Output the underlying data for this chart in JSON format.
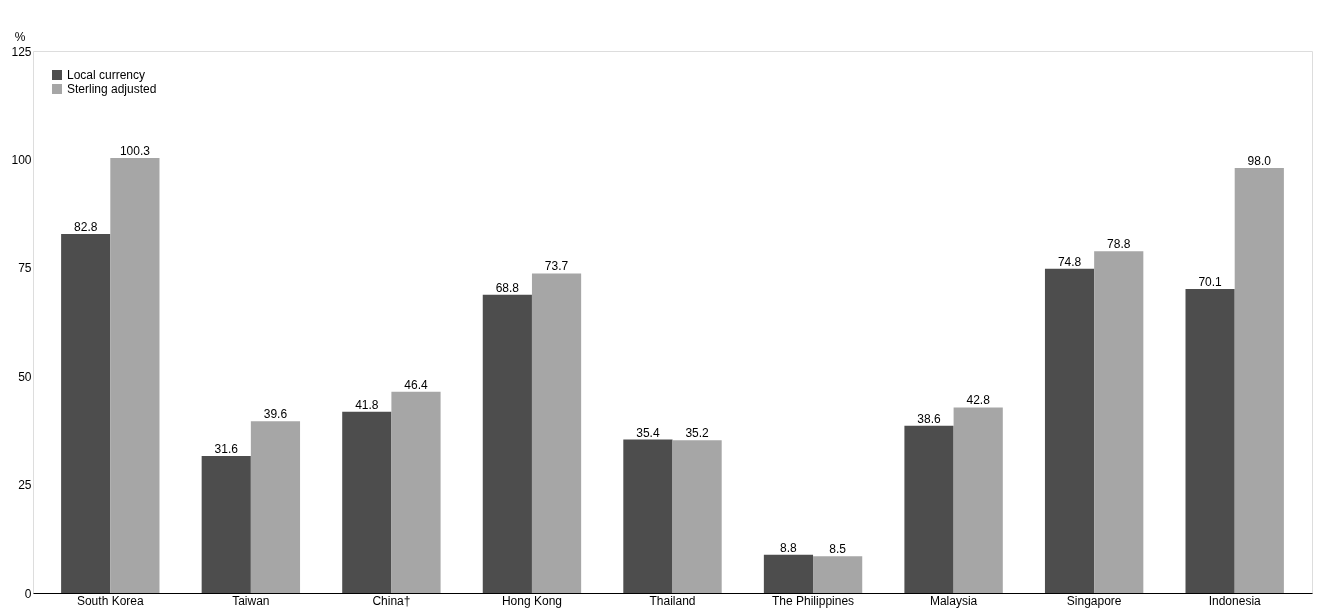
{
  "chart_data": {
    "type": "bar",
    "ylabel": "%",
    "categories": [
      "South Korea",
      "Taiwan",
      "China†",
      "Hong Kong",
      "Thailand",
      "The Philippines",
      "Malaysia",
      "Singapore",
      "Indonesia"
    ],
    "series": [
      {
        "name": "Local currency",
        "color": "#4d4d4d",
        "values": [
          82.8,
          31.6,
          41.8,
          68.8,
          35.4,
          8.8,
          38.6,
          74.8,
          70.1
        ],
        "value_labels": [
          "82.8",
          "31.6",
          "41.8",
          "68.8",
          "35.4",
          "8.8",
          "38.6",
          "74.8",
          "70.1"
        ]
      },
      {
        "name": "Sterling adjusted",
        "color": "#a6a6a6",
        "values": [
          100.3,
          39.6,
          46.4,
          73.7,
          35.2,
          8.5,
          42.8,
          78.8,
          98.0
        ],
        "value_labels": [
          "100.3",
          "39.6",
          "46.4",
          "73.7",
          "35.2",
          "8.5",
          "42.8",
          "78.8",
          "98.0"
        ]
      }
    ],
    "ylim": [
      0,
      125
    ],
    "yticks": [
      0,
      25,
      50,
      75,
      100,
      125
    ],
    "grid": false,
    "legend": "top left"
  }
}
